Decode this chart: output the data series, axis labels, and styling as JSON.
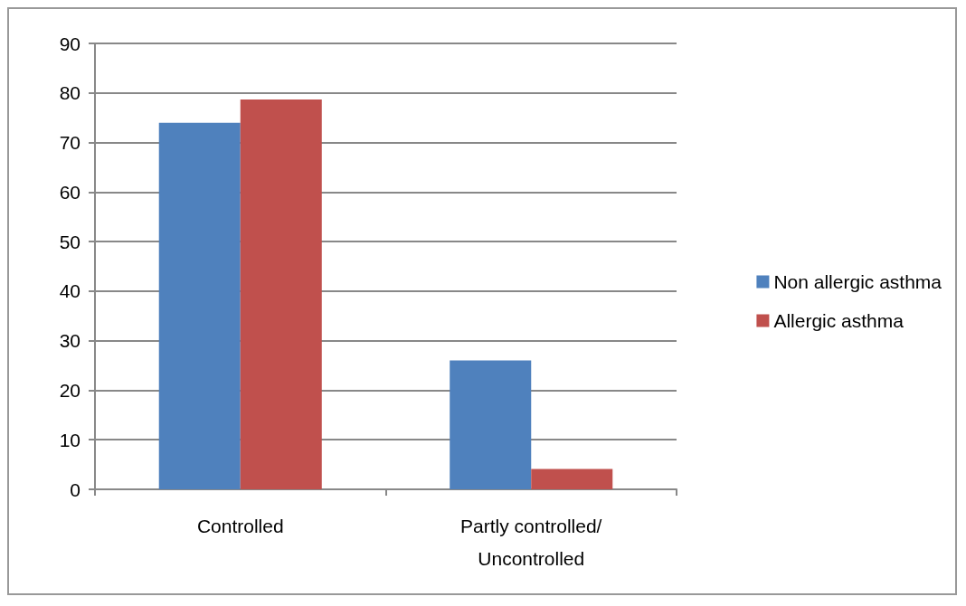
{
  "chart_data": {
    "type": "bar",
    "categories": [
      "Controlled",
      "Partly controlled/Uncontrolled"
    ],
    "series": [
      {
        "name": "Non allergic asthma",
        "color": "#4f81bd",
        "values": [
          74,
          26
        ]
      },
      {
        "name": "Allergic asthma",
        "color": "#c0504d",
        "values": [
          78.7,
          4.1
        ]
      }
    ],
    "ylim": [
      0,
      90
    ],
    "yticks": [
      0,
      10,
      20,
      30,
      40,
      50,
      60,
      70,
      80,
      90
    ],
    "grid": "y",
    "legend": "right"
  }
}
